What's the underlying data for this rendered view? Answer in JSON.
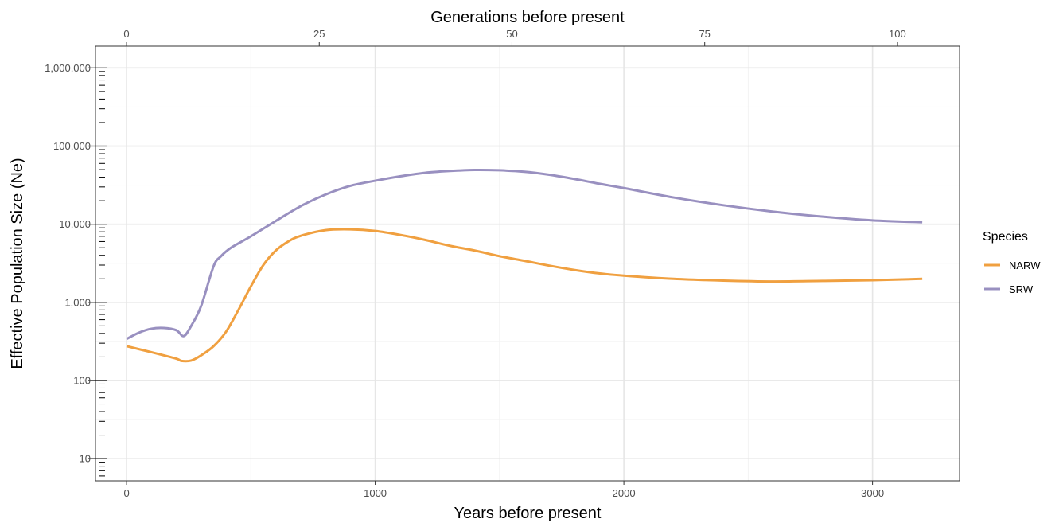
{
  "chart_data": {
    "type": "line",
    "xlabel": "Years before present",
    "x2label": "Generations before present",
    "ylabel": "Effective Population Size (Ne)",
    "xlim": [
      -125,
      3350
    ],
    "x2lim": [
      -4.03,
      108.06
    ],
    "ylim": [
      5.2,
      1900000
    ],
    "yscale": "log",
    "grid": true,
    "legend_placement": "right",
    "x_ticks": [
      {
        "value": 0,
        "label": "0"
      },
      {
        "value": 1000,
        "label": "1000"
      },
      {
        "value": 2000,
        "label": "2000"
      },
      {
        "value": 3000,
        "label": "3000"
      }
    ],
    "x2_ticks": [
      {
        "value": 0,
        "label": "0"
      },
      {
        "value": 25,
        "label": "25"
      },
      {
        "value": 50,
        "label": "50"
      },
      {
        "value": 75,
        "label": "75"
      },
      {
        "value": 100,
        "label": "100"
      }
    ],
    "y_ticks": [
      {
        "value": 10,
        "label": "10"
      },
      {
        "value": 100,
        "label": "100"
      },
      {
        "value": 1000,
        "label": "1,000"
      },
      {
        "value": 10000,
        "label": "10,000"
      },
      {
        "value": 100000,
        "label": "100,000"
      },
      {
        "value": 1000000,
        "label": "1,000,000"
      }
    ],
    "legend": {
      "title": "Species"
    },
    "series": [
      {
        "name": "NARW",
        "color": "#f0a040",
        "x": [
          0,
          100,
          200,
          220,
          260,
          300,
          350,
          400,
          450,
          500,
          550,
          600,
          650,
          700,
          800,
          900,
          1000,
          1100,
          1200,
          1300,
          1400,
          1500,
          1600,
          1700,
          1800,
          1900,
          2000,
          2200,
          2400,
          2600,
          2800,
          3000,
          3200
        ],
        "y": [
          275,
          230,
          190,
          178,
          180,
          210,
          275,
          420,
          800,
          1600,
          3000,
          4600,
          6000,
          7100,
          8400,
          8600,
          8200,
          7300,
          6300,
          5300,
          4600,
          3900,
          3400,
          2950,
          2600,
          2350,
          2200,
          2000,
          1900,
          1850,
          1880,
          1920,
          2000
        ]
      },
      {
        "name": "SRW",
        "color": "#9990c0",
        "x": [
          0,
          50,
          100,
          150,
          200,
          230,
          260,
          300,
          350,
          380,
          420,
          500,
          600,
          700,
          800,
          900,
          1000,
          1100,
          1200,
          1300,
          1400,
          1500,
          1600,
          1700,
          1800,
          1900,
          2000,
          2200,
          2400,
          2600,
          2800,
          3000,
          3200
        ],
        "y": [
          340,
          410,
          460,
          470,
          440,
          370,
          500,
          900,
          2900,
          3900,
          5000,
          7000,
          11000,
          17000,
          24000,
          31000,
          36000,
          41000,
          45500,
          48000,
          49500,
          49000,
          47000,
          43000,
          38000,
          33000,
          29000,
          22000,
          17500,
          14500,
          12500,
          11200,
          10600
        ]
      }
    ]
  }
}
